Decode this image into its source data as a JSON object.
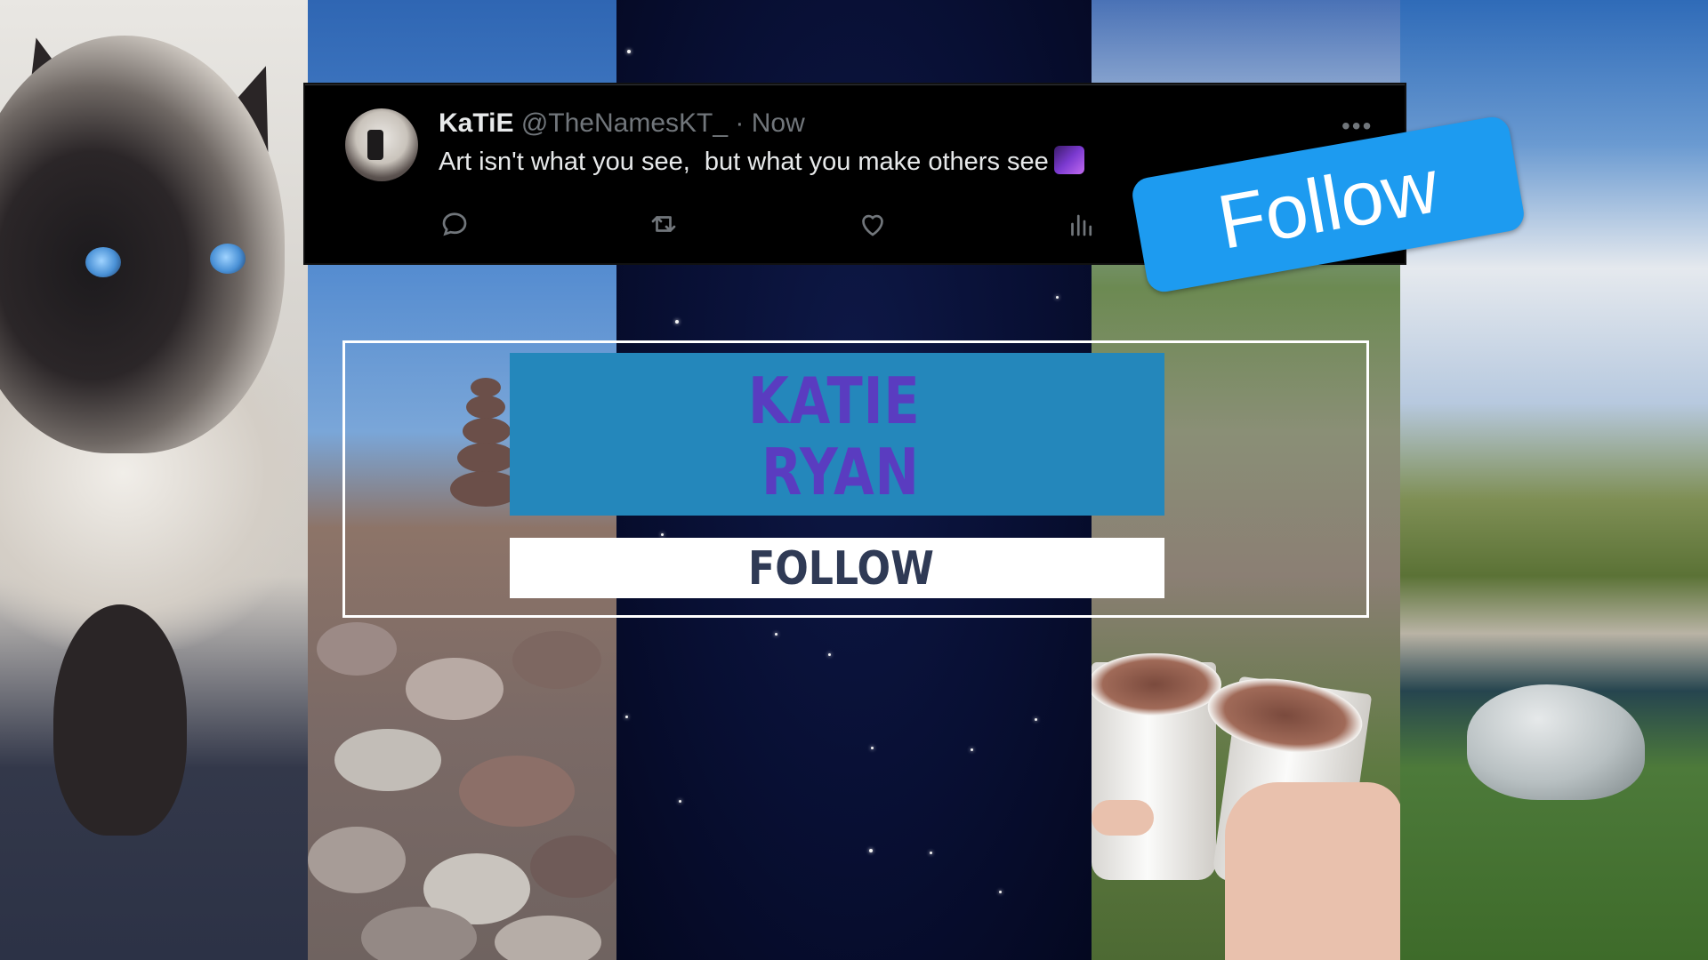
{
  "tweet": {
    "display_name": "KaTiE",
    "handle": "@TheNamesKT_",
    "separator": "·",
    "timestamp": "Now",
    "text": "Art isn't what you see,  but what you make others see",
    "more_label": "•••"
  },
  "sticker": {
    "label": "Follow"
  },
  "banner": {
    "name_line_1": "KATIE",
    "name_line_2": "RYAN",
    "cta": "FOLLOW"
  },
  "colors": {
    "tweet_bg": "#000000",
    "follow_blue": "#1d9bf0",
    "banner_blue": "#2487bb",
    "name_purple": "#5a3cc0",
    "cta_text": "#2f3a55"
  },
  "icons": [
    "reply-icon",
    "retweet-icon",
    "like-icon",
    "views-icon",
    "more-icon"
  ]
}
